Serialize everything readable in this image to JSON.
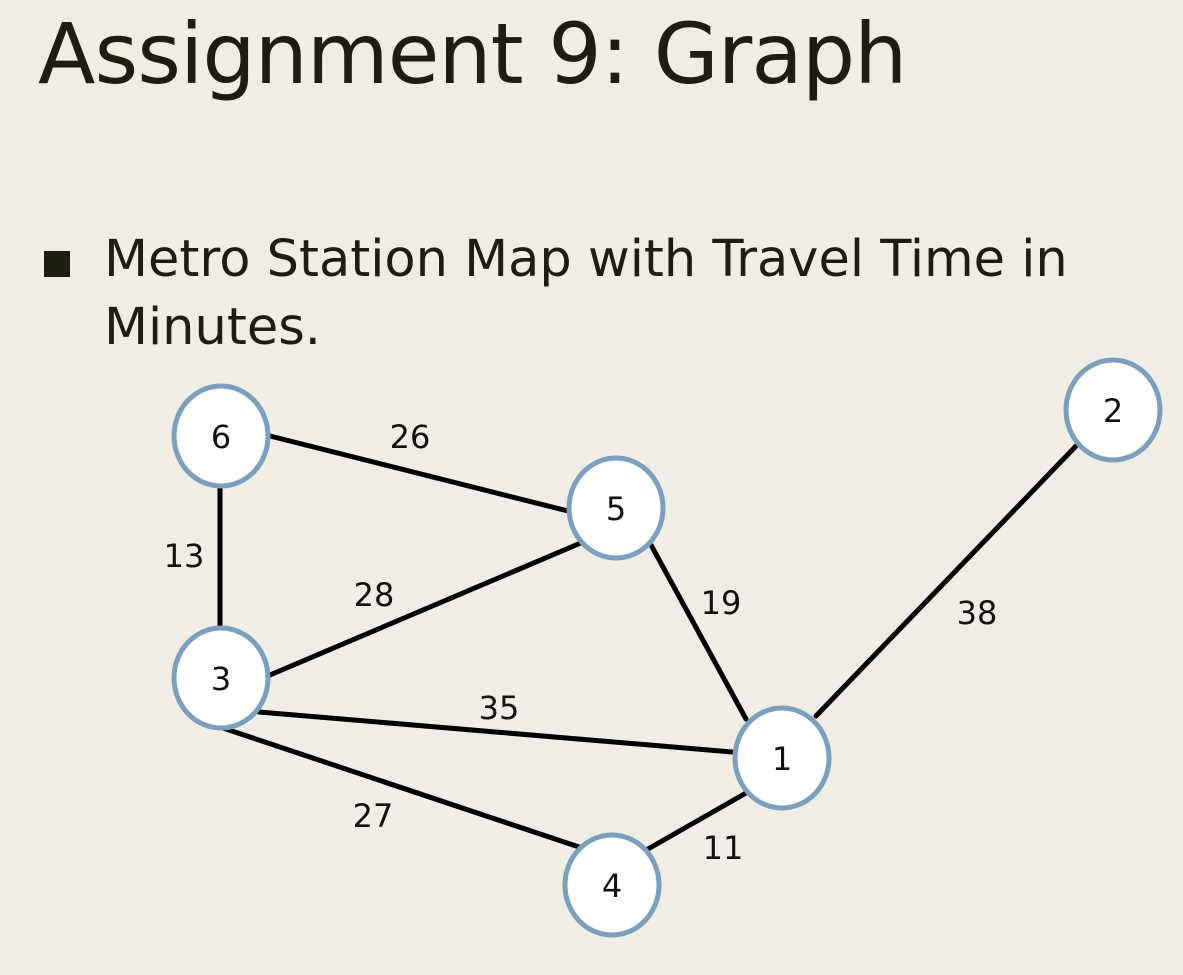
{
  "title": "Assignment 9: Graph",
  "bullets": [
    {
      "text": "Metro Station Map with Travel Time in Minutes."
    }
  ],
  "colors": {
    "background": "#efede5",
    "node_fill": "#ffffff",
    "node_stroke": "#7b9fbc",
    "edge": "#000000"
  },
  "graph": {
    "nodes": [
      {
        "id": "1",
        "label": "1"
      },
      {
        "id": "2",
        "label": "2"
      },
      {
        "id": "3",
        "label": "3"
      },
      {
        "id": "4",
        "label": "4"
      },
      {
        "id": "5",
        "label": "5"
      },
      {
        "id": "6",
        "label": "6"
      }
    ],
    "edges": [
      {
        "from": "6",
        "to": "5",
        "weight": "26"
      },
      {
        "from": "6",
        "to": "3",
        "weight": "13"
      },
      {
        "from": "3",
        "to": "5",
        "weight": "28"
      },
      {
        "from": "5",
        "to": "1",
        "weight": "19"
      },
      {
        "from": "2",
        "to": "1",
        "weight": "38"
      },
      {
        "from": "3",
        "to": "1",
        "weight": "35"
      },
      {
        "from": "3",
        "to": "4",
        "weight": "27"
      },
      {
        "from": "4",
        "to": "1",
        "weight": "11"
      }
    ]
  }
}
